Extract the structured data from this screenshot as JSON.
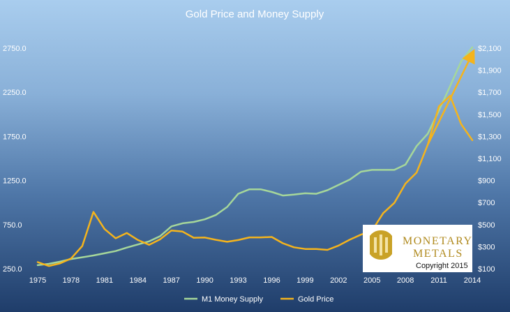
{
  "chart_data": {
    "type": "line",
    "title": "Gold Price and Money Supply",
    "x_ticks": [
      "1975",
      "1978",
      "1981",
      "1984",
      "1987",
      "1990",
      "1993",
      "1996",
      "1999",
      "2002",
      "2005",
      "2008",
      "2011",
      "2014"
    ],
    "y_left_ticks": [
      "250.0",
      "750.0",
      "1250.0",
      "1750.0",
      "2250.0",
      "2750.0"
    ],
    "y_left_lim": [
      250,
      2750
    ],
    "y_right_ticks": [
      "$100",
      "$300",
      "$500",
      "$700",
      "$900",
      "$1,100",
      "$1,300",
      "$1,500",
      "$1,700",
      "$1,900",
      "$2,100"
    ],
    "y_right_lim": [
      100,
      2100
    ],
    "x_lim": [
      1975,
      2014
    ],
    "grid": "none",
    "legend_position": "bottom",
    "series": [
      {
        "name": "M1 Money Supply",
        "axis": "left",
        "color": "#a6d79a",
        "x": [
          1975,
          1976,
          1977,
          1978,
          1979,
          1980,
          1981,
          1982,
          1983,
          1984,
          1985,
          1986,
          1987,
          1988,
          1989,
          1990,
          1991,
          1992,
          1993,
          1994,
          1995,
          1996,
          1997,
          1998,
          1999,
          2000,
          2001,
          2002,
          2003,
          2004,
          2005,
          2006,
          2007,
          2008,
          2009,
          2010,
          2011,
          2012,
          2013,
          2014
        ],
        "values": [
          290,
          305,
          330,
          360,
          380,
          400,
          425,
          450,
          490,
          525,
          560,
          620,
          730,
          765,
          780,
          810,
          860,
          950,
          1100,
          1150,
          1150,
          1120,
          1080,
          1090,
          1105,
          1100,
          1140,
          1200,
          1260,
          1350,
          1370,
          1370,
          1370,
          1430,
          1640,
          1780,
          2040,
          2320,
          2600,
          2760
        ]
      },
      {
        "name": "Gold Price",
        "axis": "right",
        "color": "#f5b41c",
        "x": [
          1975,
          1976,
          1977,
          1978,
          1979,
          1980,
          1981,
          1982,
          1983,
          1984,
          1985,
          1986,
          1987,
          1988,
          1989,
          1990,
          1991,
          1992,
          1993,
          1994,
          1995,
          1996,
          1997,
          1998,
          1999,
          2000,
          2001,
          2002,
          2003,
          2004,
          2005,
          2006,
          2007,
          2008,
          2009,
          2010,
          2011,
          2012,
          2013,
          2014
        ],
        "values": [
          160,
          125,
          148,
          193,
          306,
          615,
          460,
          376,
          424,
          360,
          317,
          368,
          447,
          437,
          381,
          383,
          362,
          344,
          360,
          384,
          384,
          388,
          331,
          294,
          279,
          279,
          271,
          310,
          363,
          409,
          445,
          604,
          697,
          872,
          972,
          1225,
          1572,
          1669,
          1411,
          1266
        ]
      }
    ],
    "annotations": [
      "trend-arrow"
    ]
  },
  "legend": {
    "m1_label": "M1 Money Supply",
    "gold_label": "Gold Price"
  },
  "logo": {
    "brand": "MONETARY METALS",
    "copyright": "Copyright 2015",
    "gold": "#c9a227"
  }
}
